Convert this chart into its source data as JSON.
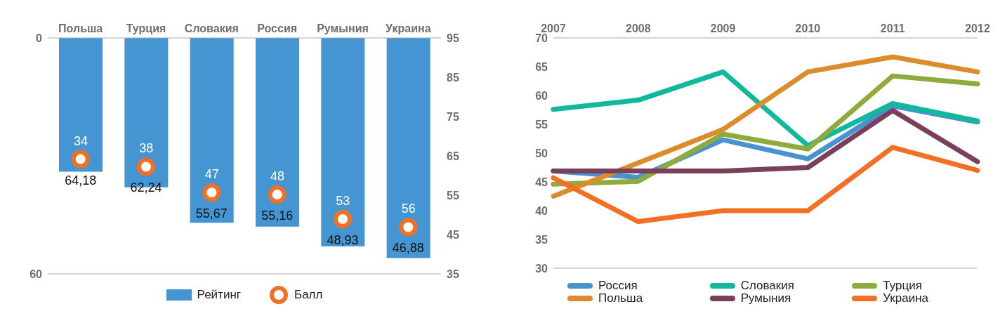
{
  "chart_data": [
    {
      "type": "bar",
      "categories": [
        "Польша",
        "Турция",
        "Словакия",
        "Россия",
        "Румыния",
        "Украина"
      ],
      "ylim": [
        60,
        0
      ],
      "yticks": [
        0,
        60
      ],
      "y2lim": [
        35,
        95
      ],
      "y2ticks": [
        35,
        45,
        55,
        65,
        75,
        85,
        95
      ],
      "legend": "bottom",
      "series": [
        {
          "name": "Рейтинг",
          "color": "#4595d2",
          "values": [
            34,
            38,
            47,
            48,
            53,
            56
          ],
          "value_labels": [
            "34",
            "38",
            "47",
            "48",
            "53",
            "56"
          ]
        },
        {
          "name": "Балл",
          "type": "scatter",
          "axis": "y2",
          "color": "#f26f23",
          "marker": "circle",
          "x": [
            "Польша",
            "Турция",
            "Словакия",
            "Россия",
            "Румыния",
            "Украина"
          ],
          "values": [
            64.18,
            62.24,
            55.67,
            55.16,
            48.93,
            46.88
          ],
          "value_labels": [
            "64,18",
            "62,24",
            "55,67",
            "55,16",
            "48,93",
            "46,88"
          ]
        }
      ]
    },
    {
      "type": "line",
      "categories": [
        "2007",
        "2008",
        "2009",
        "2010",
        "2011",
        "2012"
      ],
      "ylim": [
        30,
        70
      ],
      "yticks": [
        30,
        35,
        40,
        45,
        50,
        55,
        60,
        65,
        70
      ],
      "legend": "bottom",
      "series": [
        {
          "name": "Россия",
          "color": "#4693d0",
          "values": [
            46.9,
            45.8,
            52.3,
            49.0,
            58.2,
            55.4
          ]
        },
        {
          "name": "Словакия",
          "color": "#11b89c",
          "values": [
            57.6,
            59.2,
            64.1,
            51.3,
            58.6,
            55.6
          ]
        },
        {
          "name": "Турция",
          "color": "#8fab3c",
          "values": [
            44.6,
            45.1,
            53.3,
            50.7,
            63.4,
            62.0
          ]
        },
        {
          "name": "Польша",
          "color": "#dc8c2b",
          "values": [
            42.5,
            48.3,
            54.1,
            64.1,
            66.7,
            64.1
          ]
        },
        {
          "name": "Румыния",
          "color": "#7a3f5a",
          "values": [
            46.9,
            46.9,
            46.9,
            47.5,
            57.4,
            48.5
          ]
        },
        {
          "name": "Украина",
          "color": "#f26f23",
          "values": [
            45.7,
            38.1,
            40.0,
            40.0,
            51.0,
            47.0
          ]
        }
      ]
    }
  ]
}
